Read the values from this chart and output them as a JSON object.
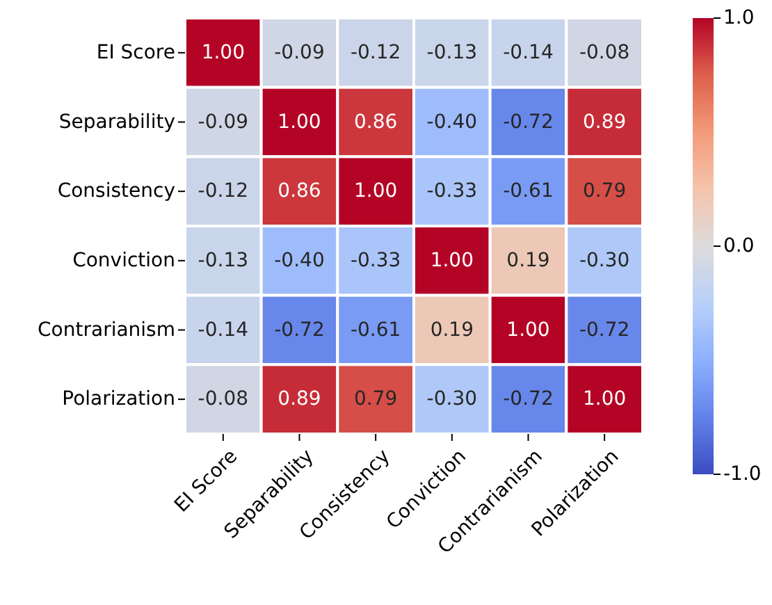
{
  "chart_data": {
    "type": "heatmap",
    "categories": [
      "EI Score",
      "Separability",
      "Consistency",
      "Conviction",
      "Contrarianism",
      "Polarization"
    ],
    "y_categories": [
      "EI Score",
      "Separability",
      "Consistency",
      "Conviction",
      "Contrarianism",
      "Polarization"
    ],
    "cells": [
      [
        1.0,
        -0.09,
        -0.12,
        -0.13,
        -0.14,
        -0.08
      ],
      [
        -0.09,
        1.0,
        0.86,
        -0.4,
        -0.72,
        0.89
      ],
      [
        -0.12,
        0.86,
        1.0,
        -0.33,
        -0.61,
        0.79
      ],
      [
        -0.13,
        -0.4,
        -0.33,
        1.0,
        0.19,
        -0.3
      ],
      [
        -0.14,
        -0.72,
        -0.61,
        0.19,
        1.0,
        -0.72
      ],
      [
        -0.08,
        0.89,
        0.79,
        -0.3,
        -0.72,
        1.0
      ]
    ],
    "cell_labels": [
      [
        "1.00",
        "-0.09",
        "-0.12",
        "-0.13",
        "-0.14",
        "-0.08"
      ],
      [
        "-0.09",
        "1.00",
        "0.86",
        "-0.40",
        "-0.72",
        "0.89"
      ],
      [
        "-0.12",
        "0.86",
        "1.00",
        "-0.33",
        "-0.61",
        "0.79"
      ],
      [
        "-0.13",
        "-0.40",
        "-0.33",
        "1.00",
        "0.19",
        "-0.30"
      ],
      [
        "-0.14",
        "-0.72",
        "-0.61",
        "0.19",
        "1.00",
        "-0.72"
      ],
      [
        "-0.08",
        "0.89",
        "0.79",
        "-0.30",
        "-0.72",
        "1.00"
      ]
    ],
    "clim": [
      -1,
      1
    ],
    "cticks": [
      {
        "value": -1,
        "label": "-1.0"
      },
      {
        "value": 0,
        "label": "0.0"
      },
      {
        "value": 1,
        "label": "1.0"
      }
    ]
  }
}
